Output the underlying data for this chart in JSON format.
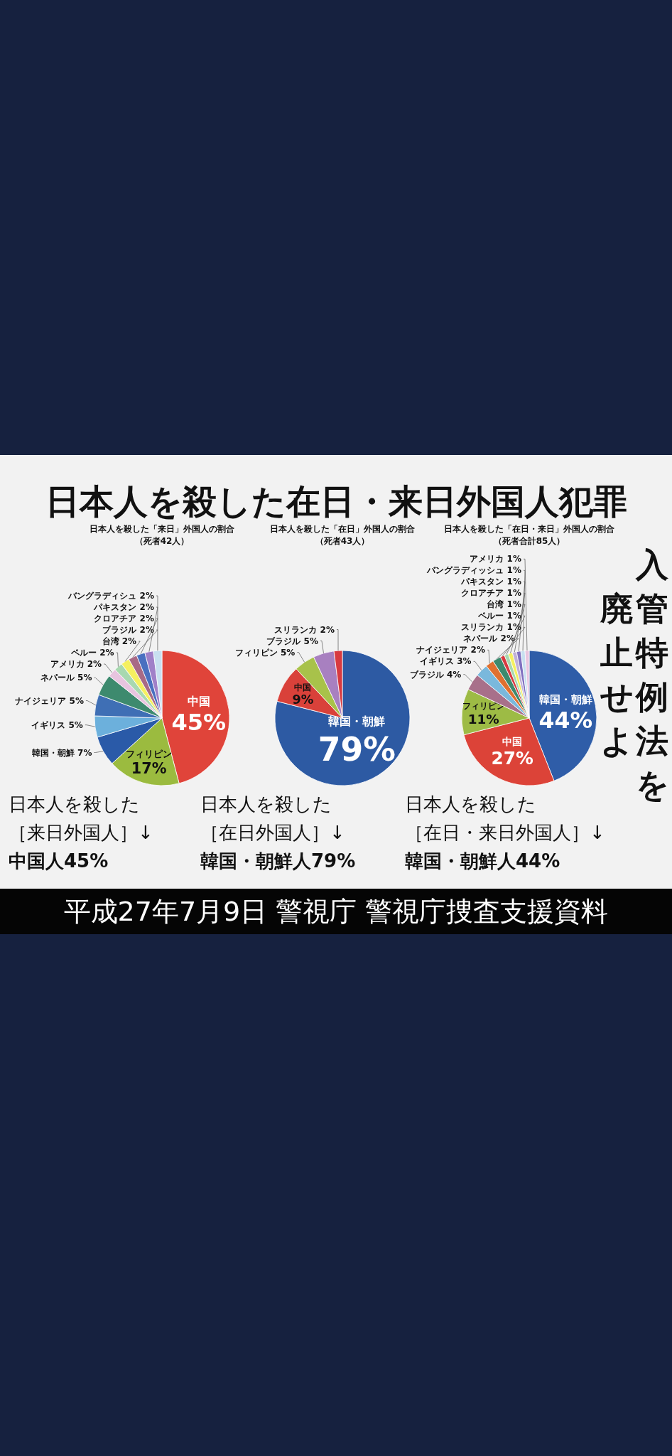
{
  "chart_data": [
    {
      "type": "pie",
      "title": "日本人を殺した「来日」外国人の割合",
      "subtitle": "（死者42人）",
      "categories": [
        "中国",
        "フィリピン",
        "韓国・朝鮮",
        "イギリス",
        "ナイジェリア",
        "ネパール",
        "アメリカ",
        "ペルー",
        "台湾",
        "ブラジル",
        "クロアチア",
        "パキスタン",
        "バングラディシュ"
      ],
      "values": [
        45,
        17,
        7,
        5,
        5,
        5,
        2,
        2,
        2,
        2,
        2,
        2,
        2
      ],
      "value_labels": [
        "45%",
        "17%",
        "7%",
        "5%",
        "5%",
        "5%",
        "2%",
        "2%",
        "2%",
        "2%",
        "2%",
        "2%",
        "2%"
      ],
      "colors": [
        "#e0443a",
        "#9bbb3f",
        "#2a5aa8",
        "#6cb0dc",
        "#3f6fb5",
        "#3d8a6e",
        "#e8c4df",
        "#a8d8b0",
        "#f5f060",
        "#a86a86",
        "#4a70c0",
        "#a080c8",
        "#c8e0f0"
      ],
      "annotations": [
        "日本人を殺した",
        "［来日外国人］↓",
        "中国人45%"
      ]
    },
    {
      "type": "pie",
      "title": "日本人を殺した「在日」外国人の割合",
      "subtitle": "（死者43人）",
      "categories": [
        "韓国・朝鮮",
        "中国",
        "フィリピン",
        "ブラジル",
        "スリランカ"
      ],
      "values": [
        79,
        9,
        5,
        5,
        2
      ],
      "value_labels": [
        "79%",
        "9%",
        "5%",
        "5%",
        "2%"
      ],
      "colors": [
        "#2d5aa3",
        "#d9413a",
        "#a8c24a",
        "#a880c0",
        "#d83a40"
      ],
      "annotations": [
        "日本人を殺した",
        "［在日外国人］↓",
        "韓国・朝鮮人79%"
      ]
    },
    {
      "type": "pie",
      "title": "日本人を殺した「在日・来日」外国人の割合",
      "subtitle": "（死者合計85人）",
      "categories": [
        "韓国・朝鮮",
        "中国",
        "フィリピン",
        "ブラジル",
        "イギリス",
        "ナイジェリア",
        "ネパール",
        "スリランカ",
        "ペルー",
        "台湾",
        "クロアチア",
        "パキスタン",
        "バングラディッシュ",
        "アメリカ"
      ],
      "values": [
        44,
        27,
        11,
        4,
        3,
        2,
        2,
        1,
        1,
        1,
        1,
        1,
        1,
        1
      ],
      "value_labels": [
        "44%",
        "27%",
        "11%",
        "4%",
        "3%",
        "2%",
        "2%",
        "1%",
        "1%",
        "1%",
        "1%",
        "1%",
        "1%",
        "1%"
      ],
      "colors": [
        "#2f5da8",
        "#dc4338",
        "#9dbb45",
        "#a8708a",
        "#7ab8dc",
        "#e07030",
        "#3d8a6e",
        "#d83a40",
        "#a8d8b0",
        "#f5f060",
        "#c0b0d8",
        "#8070c0",
        "#c8e0f0",
        "#e8c4df"
      ],
      "annotations": [
        "日本人を殺した",
        "［在日・来日外国人］↓",
        "韓国・朝鮮人44%"
      ]
    },
    {
      "type": "other",
      "title": "日本人を殺した在日・来日外国人犯罪",
      "annotations": [
        "入管特例法を",
        "廃止せよ",
        "平成27年7月9日 警視庁 警視庁捜査支援資料"
      ]
    }
  ]
}
